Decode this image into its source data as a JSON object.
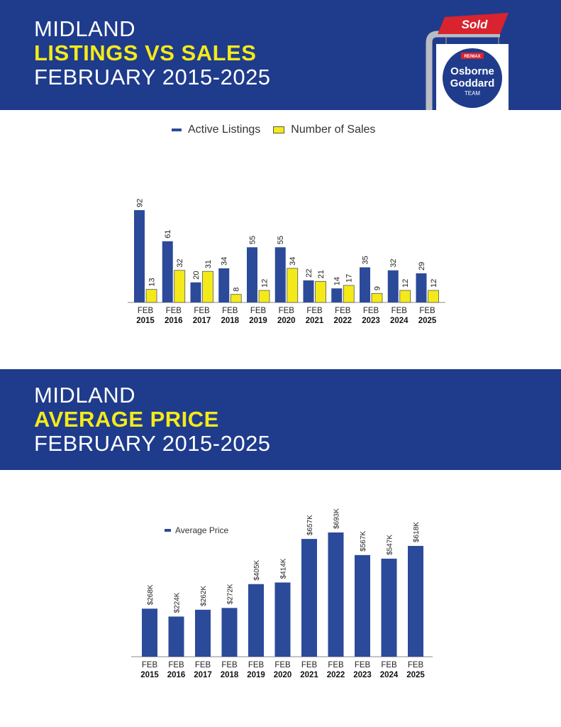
{
  "header1": {
    "line1": "MIDLAND",
    "line2": "LISTINGS VS SALES",
    "line3": "FEBRUARY 2015-2025"
  },
  "header2": {
    "line1": "MIDLAND",
    "line2": "AVERAGE PRICE",
    "line3": "FEBRUARY 2015-2025"
  },
  "logo": {
    "sold": "Sold",
    "brand": "RE/MAX",
    "name1": "Osborne",
    "name2": "Goddard",
    "name3": "TEAM"
  },
  "colors": {
    "navy": "#1f3b8c",
    "bar_blue": "#2c4a9a",
    "yellow": "#f4ea1a",
    "red": "#d9232e"
  },
  "chart_data": [
    {
      "type": "bar",
      "categories": [
        "FEB 2015",
        "FEB 2016",
        "FEB 2017",
        "FEB 2018",
        "FEB 2019",
        "FEB 2020",
        "FEB 2021",
        "FEB 2022",
        "FEB 2023",
        "FEB 2024",
        "FEB 2025"
      ],
      "series": [
        {
          "name": "Active Listings",
          "values": [
            92,
            61,
            20,
            34,
            55,
            55,
            22,
            14,
            35,
            32,
            29
          ]
        },
        {
          "name": "Number of Sales",
          "values": [
            13,
            32,
            31,
            8,
            12,
            34,
            21,
            17,
            9,
            12,
            12
          ]
        }
      ],
      "legend": "top-center",
      "grid": false
    },
    {
      "type": "bar",
      "categories": [
        "FEB 2015",
        "FEB 2016",
        "FEB 2017",
        "FEB 2018",
        "FEB 2019",
        "FEB 2020",
        "FEB 2021",
        "FEB 2022",
        "FEB 2023",
        "FEB 2024",
        "FEB 2025"
      ],
      "series": [
        {
          "name": "Average Price",
          "values": [
            268,
            224,
            262,
            272,
            405,
            414,
            657,
            693,
            567,
            547,
            618
          ],
          "labels": [
            "$268K",
            "$224K",
            "$262K",
            "$272K",
            "$405K",
            "$414K",
            "$657K",
            "$693K",
            "$567K",
            "$547K",
            "$618K"
          ]
        }
      ],
      "legend": "top-left",
      "grid": false
    }
  ]
}
